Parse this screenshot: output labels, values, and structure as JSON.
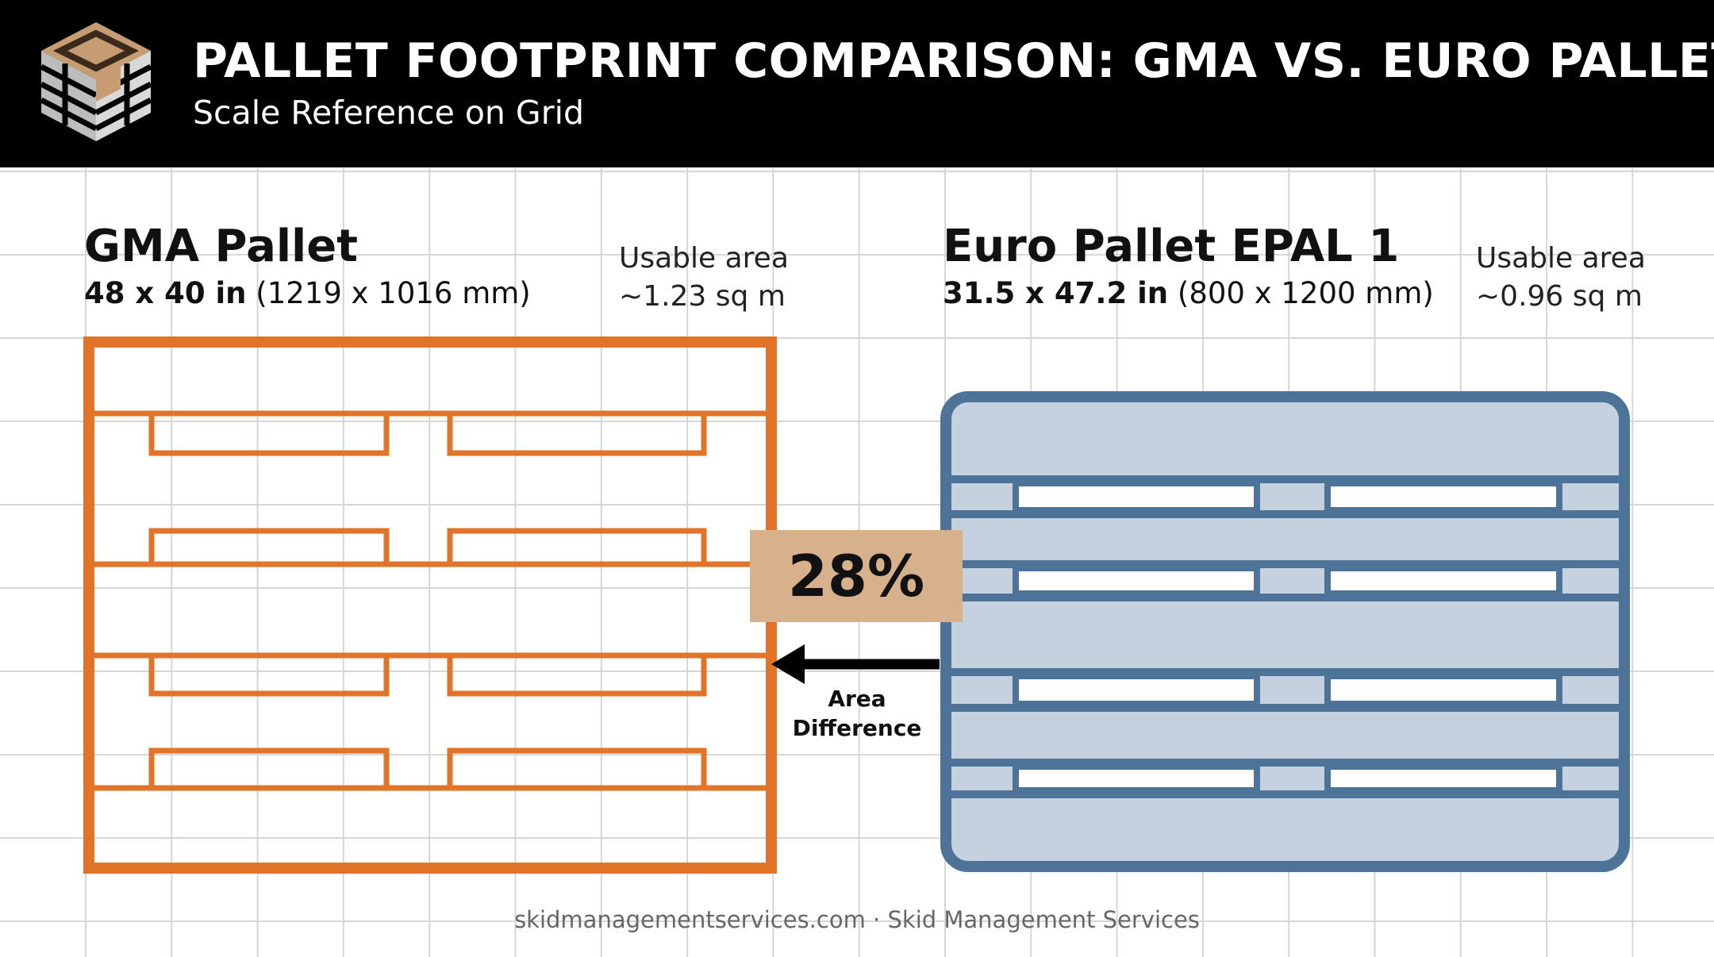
{
  "header": {
    "title": "PALLET FOOTPRINT COMPARISON: GMA VS. EURO PALLET",
    "subtitle": "Scale Reference on Grid"
  },
  "gma": {
    "name": "GMA Pallet",
    "dims_bold": "48 x 40 in",
    "dims_rest": " (1219 x 1016 mm)",
    "usable_label": "Usable area",
    "usable_value": "~1.23 sq m"
  },
  "euro": {
    "name": "Euro Pallet EPAL 1",
    "dims_bold": "31.5 x 47.2 in",
    "dims_rest": " (800 x 1200 mm)",
    "usable_label": "Usable area",
    "usable_value": "~0.96 sq m"
  },
  "comparison": {
    "percent": "28%",
    "label_line1": "Area",
    "label_line2": "Difference"
  },
  "footer": {
    "text": "skidmanagementservices.com · Skid Management Services"
  },
  "colors": {
    "header_bg": "#000000",
    "gma_orange": "#e2742a",
    "euro_blue": "#4d7399",
    "euro_fill": "#c5d1de",
    "badge": "#d7b08c",
    "grid": "#d6d6d6"
  },
  "icons": [
    "pallet-logo-icon",
    "arrow-left-icon"
  ]
}
